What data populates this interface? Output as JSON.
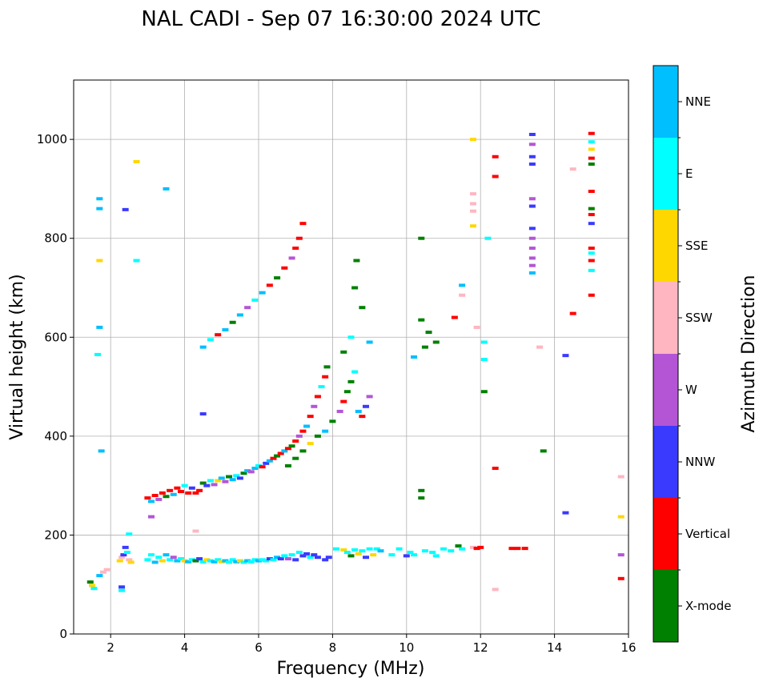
{
  "chart_data": {
    "type": "scatter",
    "title": "NAL CADI - Sep 07 16:30:00 2024 UTC",
    "xlabel": "Frequency (MHz)",
    "ylabel": "Virtual height (km)",
    "xlim": [
      1,
      16
    ],
    "ylim": [
      0,
      1120
    ],
    "xticks": [
      2,
      4,
      6,
      8,
      10,
      12,
      14,
      16
    ],
    "yticks": [
      0,
      200,
      400,
      600,
      800,
      1000
    ],
    "grid": true,
    "colorbar": {
      "label": "Azimuth Direction",
      "categories": [
        {
          "name": "X-mode",
          "color": "#008000"
        },
        {
          "name": "Vertical",
          "color": "#ff0000"
        },
        {
          "name": "NNW",
          "color": "#3a3aff"
        },
        {
          "name": "W",
          "color": "#b455d6"
        },
        {
          "name": "SSW",
          "color": "#ffb6c1"
        },
        {
          "name": "SSE",
          "color": "#ffd700"
        },
        {
          "name": "E",
          "color": "#00ffff"
        },
        {
          "name": "NNE",
          "color": "#00bfff"
        }
      ]
    },
    "points": [
      [
        1.45,
        105,
        "X-mode"
      ],
      [
        1.5,
        98,
        "SSE"
      ],
      [
        1.55,
        92,
        "E"
      ],
      [
        1.7,
        118,
        "NNE"
      ],
      [
        1.8,
        125,
        "SSW"
      ],
      [
        1.9,
        130,
        "SSW"
      ],
      [
        2.25,
        148,
        "SSE"
      ],
      [
        2.3,
        155,
        "SSW"
      ],
      [
        2.35,
        160,
        "NNW"
      ],
      [
        2.4,
        175,
        "NNW"
      ],
      [
        2.45,
        165,
        "E"
      ],
      [
        2.5,
        150,
        "SSW"
      ],
      [
        2.55,
        145,
        "SSE"
      ],
      [
        2.3,
        95,
        "NNW"
      ],
      [
        2.3,
        88,
        "E"
      ],
      [
        3.0,
        150,
        "E"
      ],
      [
        3.1,
        160,
        "E"
      ],
      [
        3.2,
        145,
        "NNE"
      ],
      [
        3.3,
        155,
        "E"
      ],
      [
        3.4,
        148,
        "SSE"
      ],
      [
        3.5,
        160,
        "NNE"
      ],
      [
        3.6,
        150,
        "E"
      ],
      [
        3.7,
        155,
        "W"
      ],
      [
        3.8,
        148,
        "NNE"
      ],
      [
        3.9,
        152,
        "E"
      ],
      [
        4.0,
        148,
        "SSE"
      ],
      [
        4.1,
        146,
        "NNE"
      ],
      [
        4.2,
        150,
        "E"
      ],
      [
        4.3,
        148,
        "X-mode"
      ],
      [
        4.4,
        152,
        "NNW"
      ],
      [
        4.5,
        146,
        "E"
      ],
      [
        4.6,
        150,
        "SSE"
      ],
      [
        4.7,
        148,
        "E"
      ],
      [
        4.8,
        146,
        "NNE"
      ],
      [
        4.9,
        150,
        "E"
      ],
      [
        5.0,
        146,
        "SSE"
      ],
      [
        5.1,
        148,
        "NNE"
      ],
      [
        5.2,
        145,
        "E"
      ],
      [
        5.3,
        150,
        "E"
      ],
      [
        5.4,
        146,
        "NNE"
      ],
      [
        5.5,
        148,
        "SSE"
      ],
      [
        5.6,
        145,
        "E"
      ],
      [
        5.7,
        148,
        "NNE"
      ],
      [
        5.8,
        146,
        "E"
      ],
      [
        5.9,
        150,
        "E"
      ],
      [
        6.0,
        148,
        "NNE"
      ],
      [
        6.1,
        150,
        "E"
      ],
      [
        6.2,
        148,
        "E"
      ],
      [
        6.3,
        152,
        "NNW"
      ],
      [
        6.4,
        150,
        "E"
      ],
      [
        6.5,
        155,
        "NNE"
      ],
      [
        6.6,
        152,
        "NNW"
      ],
      [
        6.7,
        158,
        "E"
      ],
      [
        6.8,
        152,
        "W"
      ],
      [
        6.9,
        160,
        "E"
      ],
      [
        7.0,
        150,
        "NNW"
      ],
      [
        7.1,
        165,
        "E"
      ],
      [
        7.2,
        158,
        "NNW"
      ],
      [
        7.3,
        162,
        "NNW"
      ],
      [
        7.4,
        155,
        "E"
      ],
      [
        7.5,
        160,
        "NNW"
      ],
      [
        7.6,
        155,
        "NNW"
      ],
      [
        7.8,
        150,
        "NNW"
      ],
      [
        7.9,
        155,
        "NNW"
      ],
      [
        8.1,
        172,
        "E"
      ],
      [
        8.3,
        170,
        "SSE"
      ],
      [
        8.4,
        165,
        "E"
      ],
      [
        8.5,
        158,
        "X-mode"
      ],
      [
        8.6,
        170,
        "E"
      ],
      [
        8.7,
        162,
        "SSE"
      ],
      [
        8.8,
        168,
        "E"
      ],
      [
        8.9,
        155,
        "NNW"
      ],
      [
        9.0,
        172,
        "E"
      ],
      [
        9.1,
        160,
        "SSE"
      ],
      [
        9.2,
        172,
        "E"
      ],
      [
        9.3,
        168,
        "NNE"
      ],
      [
        9.6,
        160,
        "E"
      ],
      [
        9.8,
        172,
        "E"
      ],
      [
        10.0,
        158,
        "NNW"
      ],
      [
        10.1,
        165,
        "E"
      ],
      [
        10.2,
        160,
        "E"
      ],
      [
        10.5,
        168,
        "E"
      ],
      [
        10.7,
        165,
        "E"
      ],
      [
        10.8,
        158,
        "E"
      ],
      [
        11.0,
        172,
        "E"
      ],
      [
        11.2,
        168,
        "E"
      ],
      [
        11.4,
        178,
        "X-mode"
      ],
      [
        11.5,
        172,
        "E"
      ],
      [
        11.8,
        175,
        "SSW"
      ],
      [
        11.9,
        173,
        "Vertical"
      ],
      [
        12.0,
        175,
        "Vertical"
      ],
      [
        12.85,
        173,
        "Vertical"
      ],
      [
        13.0,
        173,
        "Vertical"
      ],
      [
        13.2,
        173,
        "Vertical"
      ],
      [
        12.4,
        90,
        "SSW"
      ],
      [
        3.0,
        275,
        "Vertical"
      ],
      [
        3.1,
        268,
        "NNE"
      ],
      [
        3.2,
        280,
        "Vertical"
      ],
      [
        3.3,
        272,
        "W"
      ],
      [
        3.4,
        285,
        "Vertical"
      ],
      [
        3.5,
        278,
        "X-mode"
      ],
      [
        3.6,
        290,
        "Vertical"
      ],
      [
        3.7,
        282,
        "NNE"
      ],
      [
        3.8,
        295,
        "Vertical"
      ],
      [
        3.9,
        288,
        "Vertical"
      ],
      [
        4.0,
        300,
        "E"
      ],
      [
        4.1,
        285,
        "Vertical"
      ],
      [
        4.2,
        295,
        "NNW"
      ],
      [
        4.3,
        285,
        "Vertical"
      ],
      [
        4.4,
        290,
        "Vertical"
      ],
      [
        4.5,
        305,
        "X-mode"
      ],
      [
        4.6,
        300,
        "NNW"
      ],
      [
        4.7,
        310,
        "E"
      ],
      [
        4.8,
        302,
        "W"
      ],
      [
        4.9,
        310,
        "SSE"
      ],
      [
        5.0,
        315,
        "NNE"
      ],
      [
        5.1,
        308,
        "W"
      ],
      [
        5.2,
        318,
        "X-mode"
      ],
      [
        5.3,
        312,
        "NNE"
      ],
      [
        5.4,
        320,
        "E"
      ],
      [
        5.5,
        315,
        "NNW"
      ],
      [
        5.6,
        325,
        "X-mode"
      ],
      [
        5.7,
        330,
        "NNE"
      ],
      [
        5.8,
        328,
        "W"
      ],
      [
        5.9,
        335,
        "NNE"
      ],
      [
        6.0,
        340,
        "E"
      ],
      [
        6.1,
        338,
        "Vertical"
      ],
      [
        6.2,
        345,
        "NNW"
      ],
      [
        6.3,
        350,
        "NNE"
      ],
      [
        6.4,
        355,
        "Vertical"
      ],
      [
        6.5,
        360,
        "X-mode"
      ],
      [
        6.6,
        365,
        "Vertical"
      ],
      [
        6.7,
        370,
        "NNE"
      ],
      [
        6.8,
        375,
        "Vertical"
      ],
      [
        6.9,
        380,
        "X-mode"
      ],
      [
        7.0,
        390,
        "Vertical"
      ],
      [
        7.1,
        400,
        "W"
      ],
      [
        7.2,
        410,
        "Vertical"
      ],
      [
        7.3,
        420,
        "NNE"
      ],
      [
        7.4,
        440,
        "Vertical"
      ],
      [
        7.5,
        460,
        "W"
      ],
      [
        7.6,
        480,
        "Vertical"
      ],
      [
        7.7,
        500,
        "E"
      ],
      [
        7.8,
        520,
        "Vertical"
      ],
      [
        7.85,
        540,
        "X-mode"
      ],
      [
        6.8,
        340,
        "X-mode"
      ],
      [
        7.0,
        355,
        "X-mode"
      ],
      [
        7.2,
        370,
        "X-mode"
      ],
      [
        7.4,
        385,
        "SSE"
      ],
      [
        7.6,
        400,
        "X-mode"
      ],
      [
        7.8,
        410,
        "NNE"
      ],
      [
        8.0,
        430,
        "X-mode"
      ],
      [
        8.2,
        450,
        "W"
      ],
      [
        8.3,
        470,
        "Vertical"
      ],
      [
        8.4,
        490,
        "X-mode"
      ],
      [
        8.5,
        510,
        "X-mode"
      ],
      [
        8.6,
        530,
        "E"
      ],
      [
        8.7,
        450,
        "NNE"
      ],
      [
        8.8,
        440,
        "Vertical"
      ],
      [
        8.9,
        460,
        "NNW"
      ],
      [
        9.0,
        480,
        "W"
      ],
      [
        4.5,
        580,
        "NNE"
      ],
      [
        4.7,
        595,
        "E"
      ],
      [
        4.9,
        605,
        "Vertical"
      ],
      [
        5.1,
        615,
        "NNE"
      ],
      [
        5.3,
        630,
        "X-mode"
      ],
      [
        5.5,
        645,
        "NNE"
      ],
      [
        5.7,
        660,
        "W"
      ],
      [
        5.9,
        675,
        "E"
      ],
      [
        6.1,
        690,
        "NNE"
      ],
      [
        6.3,
        705,
        "Vertical"
      ],
      [
        6.5,
        720,
        "X-mode"
      ],
      [
        6.7,
        740,
        "Vertical"
      ],
      [
        6.9,
        760,
        "W"
      ],
      [
        7.0,
        780,
        "Vertical"
      ],
      [
        7.1,
        800,
        "Vertical"
      ],
      [
        7.2,
        830,
        "Vertical"
      ],
      [
        8.3,
        570,
        "X-mode"
      ],
      [
        8.5,
        600,
        "E"
      ],
      [
        8.6,
        700,
        "X-mode"
      ],
      [
        8.65,
        755,
        "X-mode"
      ],
      [
        8.8,
        660,
        "X-mode"
      ],
      [
        9.0,
        590,
        "NNE"
      ],
      [
        10.2,
        560,
        "NNE"
      ],
      [
        10.5,
        580,
        "X-mode"
      ],
      [
        10.8,
        590,
        "X-mode"
      ],
      [
        10.4,
        635,
        "X-mode"
      ],
      [
        10.6,
        610,
        "X-mode"
      ],
      [
        10.4,
        800,
        "X-mode"
      ],
      [
        10.4,
        290,
        "X-mode"
      ],
      [
        10.4,
        275,
        "X-mode"
      ],
      [
        11.3,
        640,
        "Vertical"
      ],
      [
        11.5,
        705,
        "NNE"
      ],
      [
        11.5,
        685,
        "SSW"
      ],
      [
        11.9,
        620,
        "SSW"
      ],
      [
        12.1,
        590,
        "E"
      ],
      [
        12.1,
        555,
        "E"
      ],
      [
        12.1,
        490,
        "X-mode"
      ],
      [
        12.2,
        800,
        "E"
      ],
      [
        11.8,
        1000,
        "SSE"
      ],
      [
        11.8,
        890,
        "SSW"
      ],
      [
        11.8,
        870,
        "SSW"
      ],
      [
        11.8,
        855,
        "SSW"
      ],
      [
        11.8,
        825,
        "SSE"
      ],
      [
        12.4,
        965,
        "Vertical"
      ],
      [
        12.4,
        925,
        "Vertical"
      ],
      [
        12.4,
        335,
        "Vertical"
      ],
      [
        13.4,
        1010,
        "NNW"
      ],
      [
        13.4,
        990,
        "W"
      ],
      [
        13.4,
        965,
        "NNW"
      ],
      [
        13.4,
        950,
        "NNW"
      ],
      [
        13.4,
        880,
        "W"
      ],
      [
        13.4,
        865,
        "NNW"
      ],
      [
        13.4,
        820,
        "NNW"
      ],
      [
        13.4,
        800,
        "W"
      ],
      [
        13.4,
        780,
        "W"
      ],
      [
        13.4,
        760,
        "W"
      ],
      [
        13.4,
        745,
        "W"
      ],
      [
        13.4,
        730,
        "NNE"
      ],
      [
        13.6,
        580,
        "SSW"
      ],
      [
        13.7,
        370,
        "X-mode"
      ],
      [
        14.3,
        563,
        "NNW"
      ],
      [
        14.3,
        245,
        "NNW"
      ],
      [
        14.5,
        940,
        "SSW"
      ],
      [
        14.5,
        648,
        "Vertical"
      ],
      [
        15.0,
        1012,
        "Vertical"
      ],
      [
        15.0,
        995,
        "E"
      ],
      [
        15.0,
        980,
        "SSE"
      ],
      [
        15.0,
        962,
        "Vertical"
      ],
      [
        15.0,
        950,
        "X-mode"
      ],
      [
        15.0,
        895,
        "Vertical"
      ],
      [
        15.0,
        860,
        "X-mode"
      ],
      [
        15.0,
        848,
        "Vertical"
      ],
      [
        15.0,
        830,
        "NNW"
      ],
      [
        15.0,
        780,
        "Vertical"
      ],
      [
        15.0,
        770,
        "E"
      ],
      [
        15.0,
        755,
        "Vertical"
      ],
      [
        15.0,
        735,
        "E"
      ],
      [
        15.0,
        685,
        "Vertical"
      ],
      [
        15.8,
        318,
        "SSW"
      ],
      [
        15.8,
        237,
        "SSE"
      ],
      [
        15.8,
        160,
        "W"
      ],
      [
        15.8,
        112,
        "Vertical"
      ],
      [
        1.7,
        880,
        "NNE"
      ],
      [
        1.7,
        860,
        "NNE"
      ],
      [
        1.7,
        755,
        "SSE"
      ],
      [
        1.7,
        620,
        "NNE"
      ],
      [
        1.65,
        565,
        "E"
      ],
      [
        1.75,
        370,
        "NNE"
      ],
      [
        2.4,
        858,
        "NNW"
      ],
      [
        2.7,
        955,
        "SSE"
      ],
      [
        2.7,
        755,
        "E"
      ],
      [
        3.5,
        900,
        "NNE"
      ],
      [
        4.5,
        445,
        "NNW"
      ],
      [
        4.3,
        208,
        "SSW"
      ],
      [
        3.1,
        237,
        "W"
      ],
      [
        2.5,
        202,
        "E"
      ]
    ]
  }
}
